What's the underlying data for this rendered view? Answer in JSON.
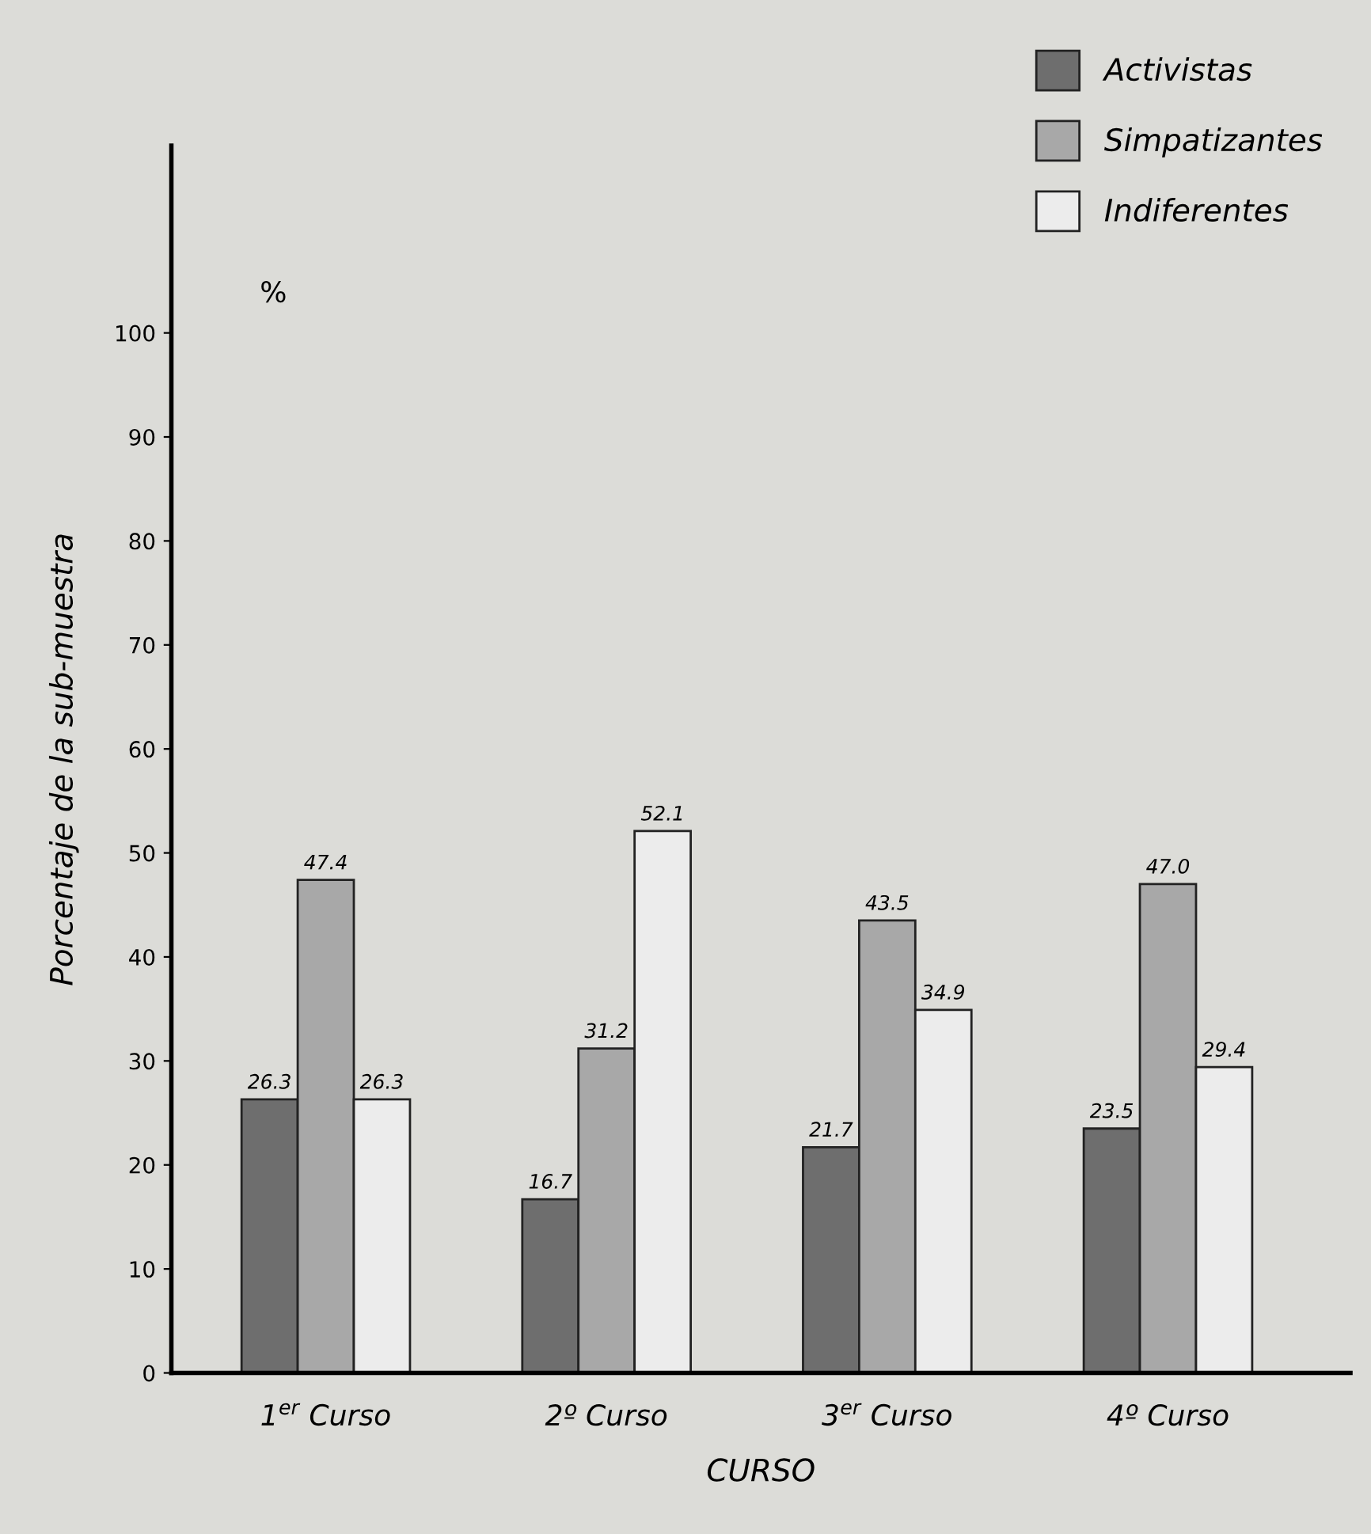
{
  "chart_data": {
    "type": "bar",
    "categories": [
      "1$^{er}$ Curso",
      "2º Curso",
      "3$^{er}$ Curso",
      "4º Curso"
    ],
    "series": [
      {
        "name": "Activistas",
        "color": "#6e6e6e",
        "values": [
          26.3,
          16.7,
          21.7,
          23.5
        ],
        "value_labels": [
          "26.3",
          "16.7",
          "21.7",
          "23.5"
        ]
      },
      {
        "name": "Simpatizantes",
        "color": "#a8a8a8",
        "values": [
          47.4,
          31.2,
          43.5,
          47.0
        ],
        "value_labels": [
          "47.4",
          "31.2",
          "43.5",
          "47.0"
        ]
      },
      {
        "name": "Indiferentes",
        "color": "#ececec",
        "values": [
          26.3,
          52.1,
          34.9,
          29.4
        ],
        "value_labels": [
          "26.3",
          "52.1",
          "34.9",
          "29.4"
        ]
      }
    ],
    "xlabel": "CURSO",
    "ylabel": "Porcentaje de la sub-muestra",
    "annotations": [
      "%"
    ],
    "ylim": [
      0,
      118
    ],
    "yticks": [
      0,
      10,
      20,
      30,
      40,
      50,
      60,
      70,
      80,
      90,
      100
    ],
    "grid": false,
    "legend": "top right"
  }
}
